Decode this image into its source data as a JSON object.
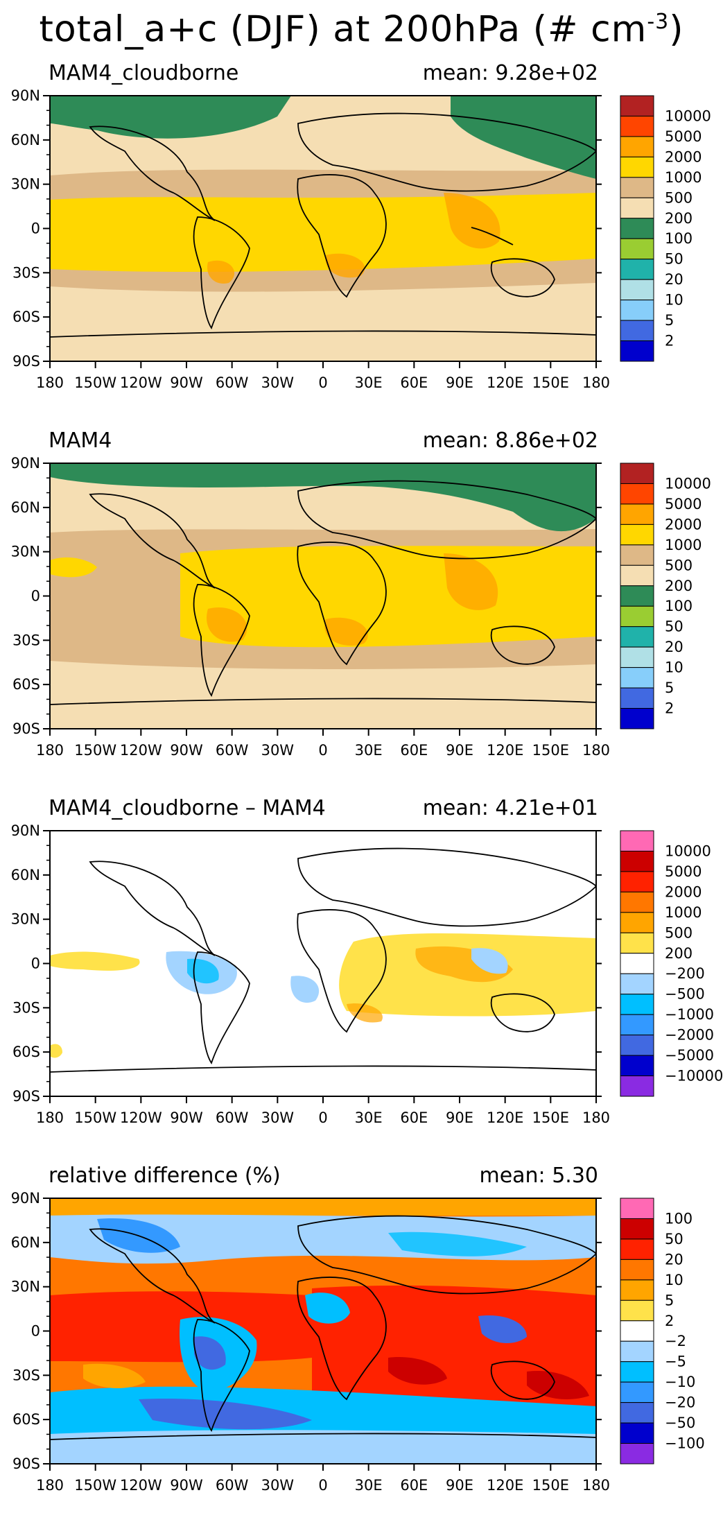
{
  "figure": {
    "title_main": "total_a+c (DJF) at 200hPa (# cm",
    "title_exp": "-3",
    "title_close": ")"
  },
  "axes": {
    "lat_labels": [
      "90N",
      "60N",
      "30N",
      "0",
      "30S",
      "60S",
      "90S"
    ],
    "lon_labels": [
      "180",
      "150W",
      "120W",
      "90W",
      "60W",
      "30W",
      "0",
      "30E",
      "60E",
      "90E",
      "120E",
      "150E",
      "180"
    ]
  },
  "panels": [
    {
      "title": "MAM4_cloudborne",
      "mean": "mean: 9.28e+02",
      "colorbar": {
        "labels": [
          "10000",
          "5000",
          "2000",
          "1000",
          "500",
          "200",
          "100",
          "50",
          "20",
          "10",
          "5",
          "2"
        ],
        "colors": [
          "#b22222",
          "#ff4500",
          "#ffa500",
          "#ffd700",
          "#deb887",
          "#f5deb3",
          "#2e8b57",
          "#9acd32",
          "#20b2aa",
          "#b0e0e6",
          "#87cefa",
          "#4169e1",
          "#0000cd"
        ]
      }
    },
    {
      "title": "MAM4",
      "mean": "mean: 8.86e+02",
      "colorbar": {
        "labels": [
          "10000",
          "5000",
          "2000",
          "1000",
          "500",
          "200",
          "100",
          "50",
          "20",
          "10",
          "5",
          "2"
        ],
        "colors": [
          "#b22222",
          "#ff4500",
          "#ffa500",
          "#ffd700",
          "#deb887",
          "#f5deb3",
          "#2e8b57",
          "#9acd32",
          "#20b2aa",
          "#b0e0e6",
          "#87cefa",
          "#4169e1",
          "#0000cd"
        ]
      }
    },
    {
      "title": "MAM4_cloudborne – MAM4",
      "mean": "mean: 4.21e+01",
      "colorbar": {
        "labels": [
          "10000",
          "5000",
          "2000",
          "1000",
          "500",
          "200",
          "−200",
          "−500",
          "−1000",
          "−2000",
          "−5000",
          "−10000"
        ],
        "colors": [
          "#ff69b4",
          "#cc0000",
          "#ff2200",
          "#ff7700",
          "#ffa500",
          "#ffe24a",
          "#ffffff",
          "#a3d4ff",
          "#00bfff",
          "#3399ff",
          "#4169e1",
          "#0000cd",
          "#8a2be2"
        ]
      }
    },
    {
      "title": "relative difference (%)",
      "mean": "mean:   5.30",
      "colorbar": {
        "labels": [
          "100",
          "50",
          "20",
          "10",
          "5",
          "2",
          "−2",
          "−5",
          "−10",
          "−20",
          "−50",
          "−100"
        ],
        "colors": [
          "#ff69b4",
          "#cc0000",
          "#ff2200",
          "#ff7700",
          "#ffa500",
          "#ffe24a",
          "#ffffff",
          "#a3d4ff",
          "#00bfff",
          "#3399ff",
          "#4169e1",
          "#0000cd",
          "#8a2be2"
        ]
      }
    }
  ]
}
